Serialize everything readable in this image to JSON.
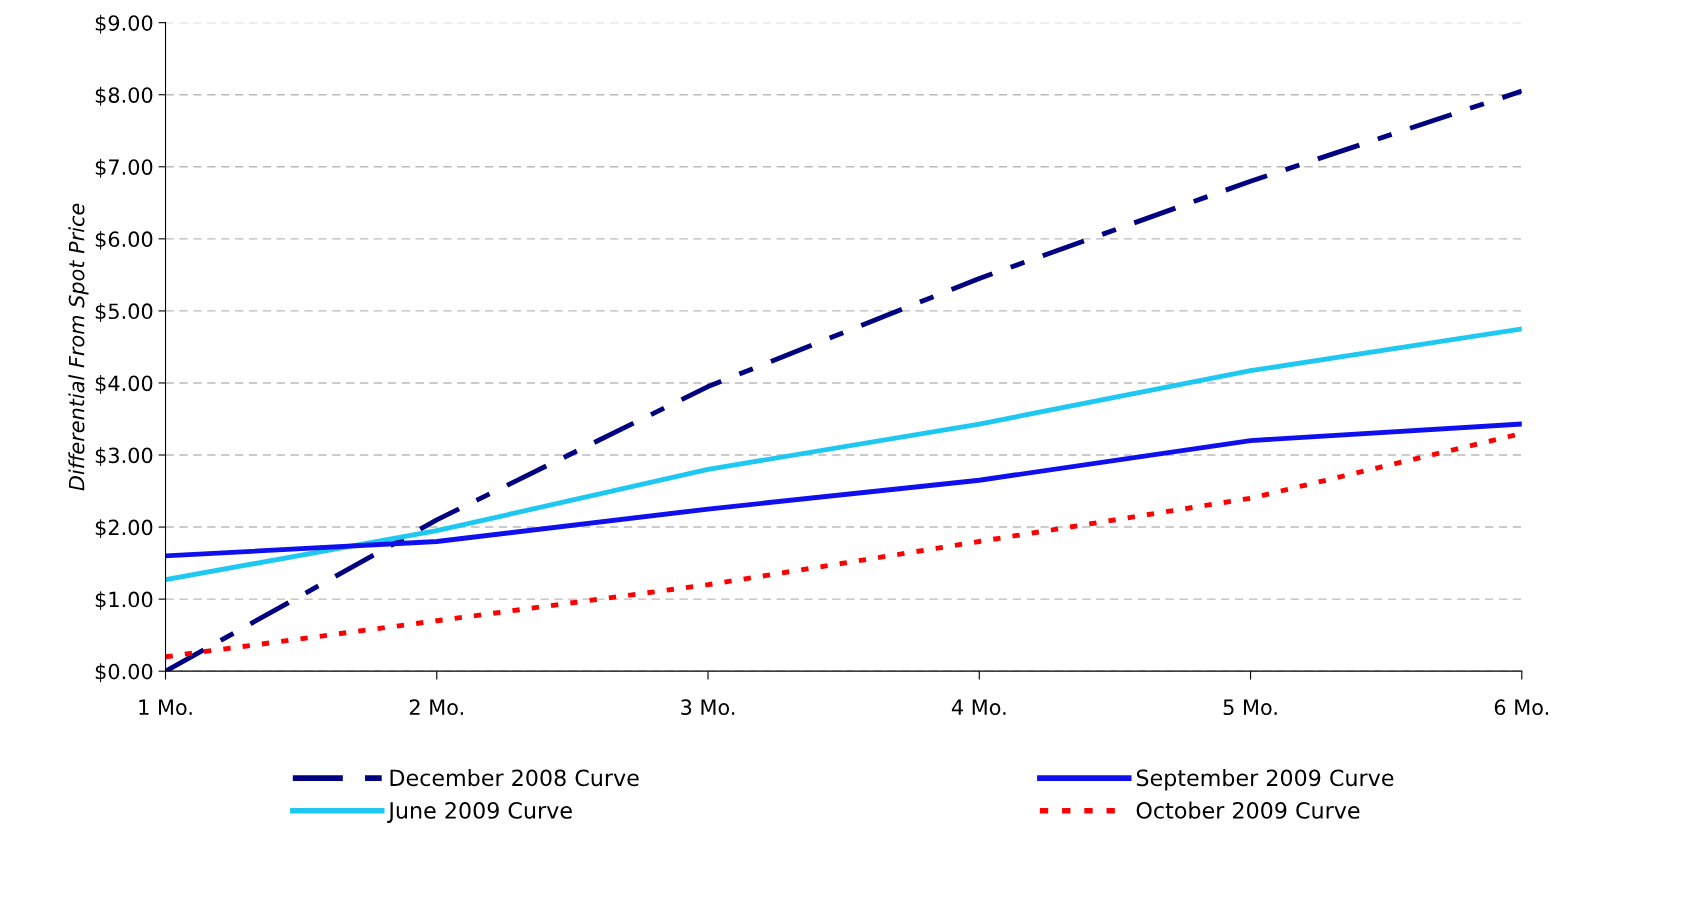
{
  "chart_data": {
    "type": "line",
    "ylabel": "Differential From Spot Price",
    "categories": [
      "1 Mo.",
      "2 Mo.",
      "3 Mo.",
      "4 Mo.",
      "5 Mo.",
      "6 Mo."
    ],
    "ylim": [
      0,
      9
    ],
    "yticks": [
      {
        "value": 0,
        "label": "$0.00"
      },
      {
        "value": 1,
        "label": "$1.00"
      },
      {
        "value": 2,
        "label": "$2.00"
      },
      {
        "value": 3,
        "label": "$3.00"
      },
      {
        "value": 4,
        "label": "$4.00"
      },
      {
        "value": 5,
        "label": "$5.00"
      },
      {
        "value": 6,
        "label": "$6.00"
      },
      {
        "value": 7,
        "label": "$7.00"
      },
      {
        "value": 8,
        "label": "$8.00"
      },
      {
        "value": 9,
        "label": "$9.00"
      }
    ],
    "grid": "y",
    "legend": "bottom",
    "series": [
      {
        "name": "December 2008 Curve",
        "color": "#000080",
        "line_style": "dashed",
        "values": [
          0.0,
          2.1,
          3.95,
          5.45,
          6.8,
          8.05
        ]
      },
      {
        "name": "June 2009 Curve",
        "color": "#1ec8f0",
        "line_style": "solid",
        "values": [
          1.27,
          1.95,
          2.8,
          3.43,
          4.17,
          4.75
        ]
      },
      {
        "name": "September 2009 Curve",
        "color": "#1010ee",
        "line_style": "solid",
        "values": [
          1.6,
          1.8,
          2.25,
          2.65,
          3.2,
          3.43
        ]
      },
      {
        "name": "October 2009 Curve",
        "color": "#ff0000",
        "line_style": "dotted",
        "values": [
          0.2,
          0.7,
          1.2,
          1.8,
          2.4,
          3.3
        ]
      }
    ]
  }
}
